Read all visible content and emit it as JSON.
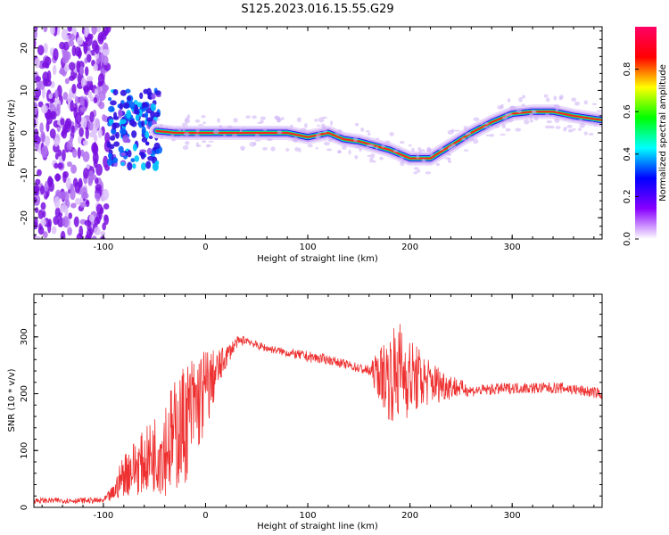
{
  "title": "S125.2023.016.15.55.G29",
  "chart_data": [
    {
      "type": "heatmap",
      "title": "S125.2023.016.15.55.G29",
      "xlabel": "Height of straight line (km)",
      "ylabel": "Frequency (Hz)",
      "xlim": [
        -168,
        388
      ],
      "ylim": [
        -25,
        25
      ],
      "x_ticks": [
        -100,
        0,
        100,
        200,
        300
      ],
      "x_tick_labels": [
        "-100",
        "0",
        "100",
        "200",
        "300"
      ],
      "y_ticks": [
        -20,
        -10,
        0,
        10,
        20
      ],
      "y_tick_labels": [
        "-20",
        "-10",
        "0",
        "10",
        "20"
      ],
      "colormap": "rainbow",
      "colorbar": {
        "label": "Normalized spectral amplitude",
        "range": [
          0,
          1
        ],
        "ticks": [
          0.0,
          0.2,
          0.4,
          0.6,
          0.8
        ],
        "tick_labels": [
          "0.0",
          "0.2",
          "0.4",
          "0.6",
          "0.8"
        ],
        "colors": [
          "#ffffff",
          "#8800ff",
          "#0000ff",
          "#00ffff",
          "#00ff00",
          "#ffff00",
          "#ff0000",
          "#ff0066"
        ]
      },
      "ridge": {
        "x": [
          -50,
          -30,
          0,
          50,
          80,
          100,
          120,
          135,
          150,
          165,
          180,
          200,
          220,
          240,
          260,
          280,
          300,
          320,
          340,
          360,
          388
        ],
        "frequency": [
          0.5,
          0,
          0,
          0,
          0,
          -1,
          0,
          -1.5,
          -2,
          -3,
          -4,
          -6,
          -6,
          -3,
          0,
          2.5,
          4.5,
          5,
          5,
          4,
          3
        ]
      },
      "noise_region_x": [
        -168,
        -95
      ]
    },
    {
      "type": "line",
      "xlabel": "Height of straight line (km)",
      "ylabel": "SNR (10 * v/v)",
      "xlim": [
        -168,
        388
      ],
      "ylim": [
        0,
        375
      ],
      "x_ticks": [
        -100,
        0,
        100,
        200,
        300
      ],
      "x_tick_labels": [
        "-100",
        "0",
        "100",
        "200",
        "300"
      ],
      "y_ticks": [
        0,
        100,
        200,
        300
      ],
      "y_tick_labels": [
        "0",
        "100",
        "200",
        "300"
      ],
      "color": "#ee3030",
      "series": [
        {
          "x": [
            -168,
            -100,
            -90,
            -80,
            -70,
            -60,
            -50,
            -40,
            -30,
            -20,
            -10,
            0,
            10,
            20,
            30,
            40,
            50,
            60,
            80,
            100,
            120,
            140,
            160,
            180,
            190,
            200,
            220,
            250,
            260,
            300,
            350,
            388
          ],
          "y": [
            12,
            12,
            25,
            60,
            70,
            80,
            95,
            110,
            125,
            150,
            180,
            205,
            235,
            265,
            290,
            295,
            285,
            280,
            272,
            265,
            260,
            250,
            240,
            230,
            240,
            230,
            220,
            210,
            205,
            210,
            210,
            200
          ],
          "amp": [
            5,
            5,
            15,
            40,
            50,
            55,
            70,
            90,
            100,
            110,
            95,
            80,
            40,
            20,
            10,
            8,
            7,
            7,
            7,
            10,
            8,
            8,
            10,
            80,
            90,
            70,
            40,
            15,
            10,
            10,
            10,
            10
          ]
        }
      ]
    }
  ]
}
